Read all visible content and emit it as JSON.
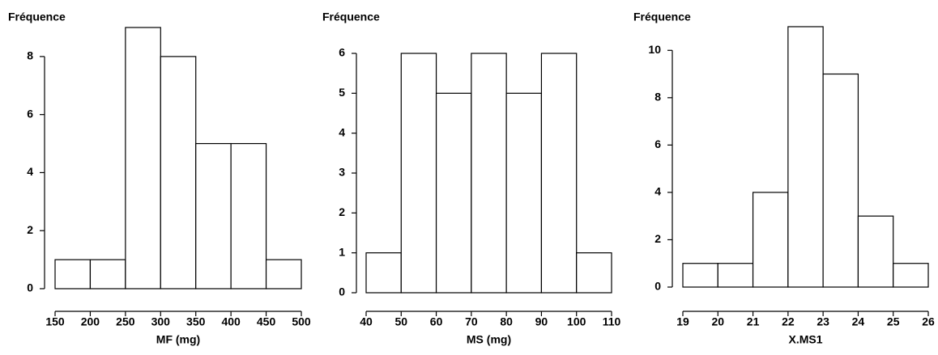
{
  "chart_data": [
    {
      "type": "histogram",
      "ylabel": "Fréquence",
      "xlabel": "MF (mg)",
      "bins": [
        150,
        200,
        250,
        300,
        350,
        400,
        450,
        500
      ],
      "values": [
        1,
        1,
        9,
        8,
        5,
        5,
        1
      ],
      "xlim": [
        150,
        500
      ],
      "xticks": [
        150,
        200,
        250,
        300,
        350,
        400,
        450,
        500
      ],
      "ylim": [
        0,
        9
      ],
      "yticks": [
        0,
        2,
        4,
        6,
        8
      ],
      "color": "#ffffff"
    },
    {
      "type": "histogram",
      "ylabel": "Fréquence",
      "xlabel": "MS (mg)",
      "bins": [
        40,
        50,
        60,
        70,
        80,
        90,
        100,
        110
      ],
      "values": [
        1,
        6,
        5,
        6,
        5,
        6,
        1
      ],
      "xlim": [
        40,
        110
      ],
      "xticks": [
        40,
        50,
        60,
        70,
        80,
        90,
        100,
        110
      ],
      "ylim": [
        0,
        6
      ],
      "yticks": [
        0,
        1,
        2,
        3,
        4,
        5,
        6
      ],
      "color": "#ffffff"
    },
    {
      "type": "histogram",
      "ylabel": "Fréquence",
      "xlabel": "X.MS1",
      "bins": [
        19,
        20,
        21,
        22,
        23,
        24,
        25,
        26
      ],
      "values": [
        1,
        1,
        4,
        11,
        9,
        3,
        1
      ],
      "xlim": [
        19,
        26
      ],
      "xticks": [
        19,
        20,
        21,
        22,
        23,
        24,
        25,
        26
      ],
      "ylim": [
        0,
        11
      ],
      "yticks": [
        0,
        2,
        4,
        6,
        8,
        10
      ],
      "color": "#ffffff"
    }
  ]
}
